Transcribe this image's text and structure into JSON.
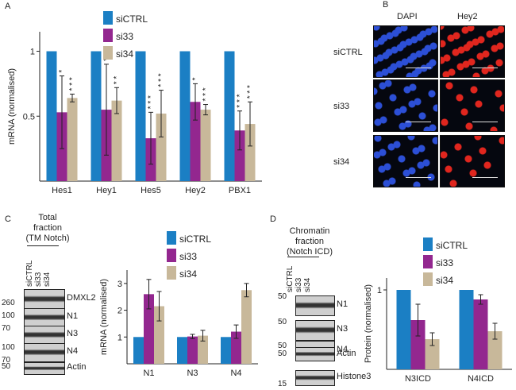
{
  "panels": {
    "A": "A",
    "B": "B",
    "C": "C",
    "D": "D"
  },
  "colors": {
    "siCTRL": "#1b7fc4",
    "si33": "#93278f",
    "si34": "#c8b89a"
  },
  "micro": {
    "col_dapi": "DAPI",
    "col_hey2": "Hey2",
    "rows": [
      "siCTRL",
      "si33",
      "si34"
    ],
    "dapi_color": "#2c4fd6",
    "hey2_color": "#e0261e"
  },
  "blotC": {
    "title": [
      "Total",
      "fraction",
      "(TM Notch)"
    ],
    "lanes": [
      "siCTRL",
      "si33",
      "si34"
    ],
    "markers": [
      "260",
      "100",
      "70",
      "100",
      "70",
      "50"
    ],
    "bands": [
      "DMXL2",
      "N1",
      "N3",
      "N4",
      "Actin"
    ]
  },
  "blotD": {
    "title": [
      "Chromatin",
      "fraction",
      "(Notch ICD)"
    ],
    "lanes": [
      "siCTRL",
      "si33",
      "si34"
    ],
    "markers": [
      "50",
      "50",
      "50",
      "50",
      "15"
    ],
    "bands": [
      "N1",
      "N3",
      "N4",
      "Actin",
      "Histone3"
    ]
  },
  "chart_data": [
    {
      "id": "A",
      "type": "bar",
      "categories": [
        "Hes1",
        "Hey1",
        "Hes5",
        "Hey2",
        "PBX1"
      ],
      "series": [
        {
          "name": "siCTRL",
          "values": [
            1,
            1,
            1,
            1,
            1
          ],
          "err": [
            0,
            0,
            0,
            0,
            0
          ]
        },
        {
          "name": "si33",
          "values": [
            0.53,
            0.55,
            0.33,
            0.61,
            0.39
          ],
          "err": [
            0.28,
            0.35,
            0.2,
            0.14,
            0.15
          ]
        },
        {
          "name": "si34",
          "values": [
            0.64,
            0.62,
            0.52,
            0.55,
            0.44
          ],
          "err": [
            0.03,
            0.1,
            0.18,
            0.04,
            0.17
          ]
        }
      ],
      "stars": [
        {
          "cat": 0,
          "series": 1,
          "text": "*"
        },
        {
          "cat": 0,
          "series": 2,
          "text": "* * *"
        },
        {
          "cat": 1,
          "series": 1,
          "text": "*"
        },
        {
          "cat": 1,
          "series": 2,
          "text": "* *"
        },
        {
          "cat": 2,
          "series": 1,
          "text": "* * *"
        },
        {
          "cat": 2,
          "series": 2,
          "text": "* * *"
        },
        {
          "cat": 3,
          "series": 1,
          "text": "*"
        },
        {
          "cat": 3,
          "series": 2,
          "text": "* * *"
        },
        {
          "cat": 4,
          "series": 1,
          "text": "* * *"
        },
        {
          "cat": 4,
          "series": 2,
          "text": "* * *"
        }
      ],
      "ylabel": "mRNA (normalised)",
      "ylim": [
        0,
        1.15
      ],
      "yticks": [
        "0.5",
        "1"
      ],
      "legend_loc": "top"
    },
    {
      "id": "C",
      "type": "bar",
      "categories": [
        "N1",
        "N3",
        "N4"
      ],
      "series": [
        {
          "name": "siCTRL",
          "values": [
            1,
            1,
            1
          ],
          "err": [
            0,
            0,
            0
          ]
        },
        {
          "name": "si33",
          "values": [
            2.6,
            1.02,
            1.2
          ],
          "err": [
            0.55,
            0.08,
            0.25
          ]
        },
        {
          "name": "si34",
          "values": [
            2.15,
            1.05,
            2.75
          ],
          "err": [
            0.55,
            0.2,
            0.25
          ]
        }
      ],
      "ylabel": "mRNA (normalised)",
      "ylim": [
        0,
        3.5
      ],
      "yticks": [
        "1",
        "2",
        "3"
      ],
      "legend_loc": "top-right"
    },
    {
      "id": "D",
      "type": "bar",
      "categories": [
        "N3ICD",
        "N4ICD"
      ],
      "series": [
        {
          "name": "siCTRL",
          "values": [
            1,
            1
          ],
          "err": [
            0,
            0
          ]
        },
        {
          "name": "si33",
          "values": [
            0.62,
            0.88
          ],
          "err": [
            0.2,
            0.06
          ]
        },
        {
          "name": "si34",
          "values": [
            0.38,
            0.48
          ],
          "err": [
            0.08,
            0.1
          ]
        }
      ],
      "ylabel": "Protein (normalised)",
      "ylim": [
        0,
        1.15
      ],
      "yticks": [
        "1"
      ],
      "legend_loc": "top-right"
    }
  ]
}
